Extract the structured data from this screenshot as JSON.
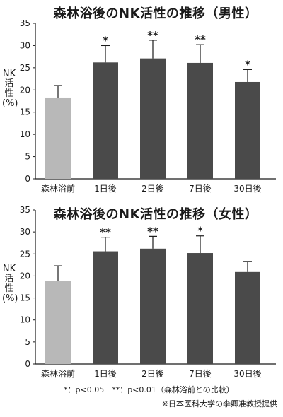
{
  "ylabel": "NK活性(%)",
  "footnote": "*：p<0.05　**：p<0.01（森林浴前との比較）",
  "credit": "※日本医科大学の李卿准教授提供",
  "chart_data": [
    {
      "type": "bar",
      "title": "森林浴後のNK活性の推移（男性）",
      "ylabel": "NK活性(%)",
      "ylim": [
        0,
        35
      ],
      "yticks": [
        0,
        5,
        10,
        15,
        20,
        25,
        30,
        35
      ],
      "categories": [
        "森林浴前",
        "1日後",
        "2日後",
        "7日後",
        "30日後"
      ],
      "values": [
        18.3,
        26.2,
        27.1,
        26.1,
        21.8
      ],
      "error_upper": [
        21.0,
        30.0,
        31.2,
        30.2,
        24.6
      ],
      "significance": [
        "",
        "*",
        "**",
        "**",
        "*"
      ],
      "colors": [
        "#b8b8b8",
        "#4a4a4a",
        "#4a4a4a",
        "#4a4a4a",
        "#4a4a4a"
      ],
      "grid": false
    },
    {
      "type": "bar",
      "title": "森林浴後のNK活性の推移（女性）",
      "ylabel": "NK活性(%)",
      "ylim": [
        0,
        35
      ],
      "yticks": [
        0,
        5,
        10,
        15,
        20,
        25,
        30,
        35
      ],
      "categories": [
        "森林浴前",
        "1日後",
        "2日後",
        "7日後",
        "30日後"
      ],
      "values": [
        18.8,
        25.6,
        26.2,
        25.2,
        20.9
      ],
      "error_upper": [
        22.3,
        28.8,
        29.0,
        29.1,
        23.3
      ],
      "significance": [
        "",
        "**",
        "**",
        "*",
        ""
      ],
      "colors": [
        "#b8b8b8",
        "#4a4a4a",
        "#4a4a4a",
        "#4a4a4a",
        "#4a4a4a"
      ],
      "grid": false
    }
  ]
}
